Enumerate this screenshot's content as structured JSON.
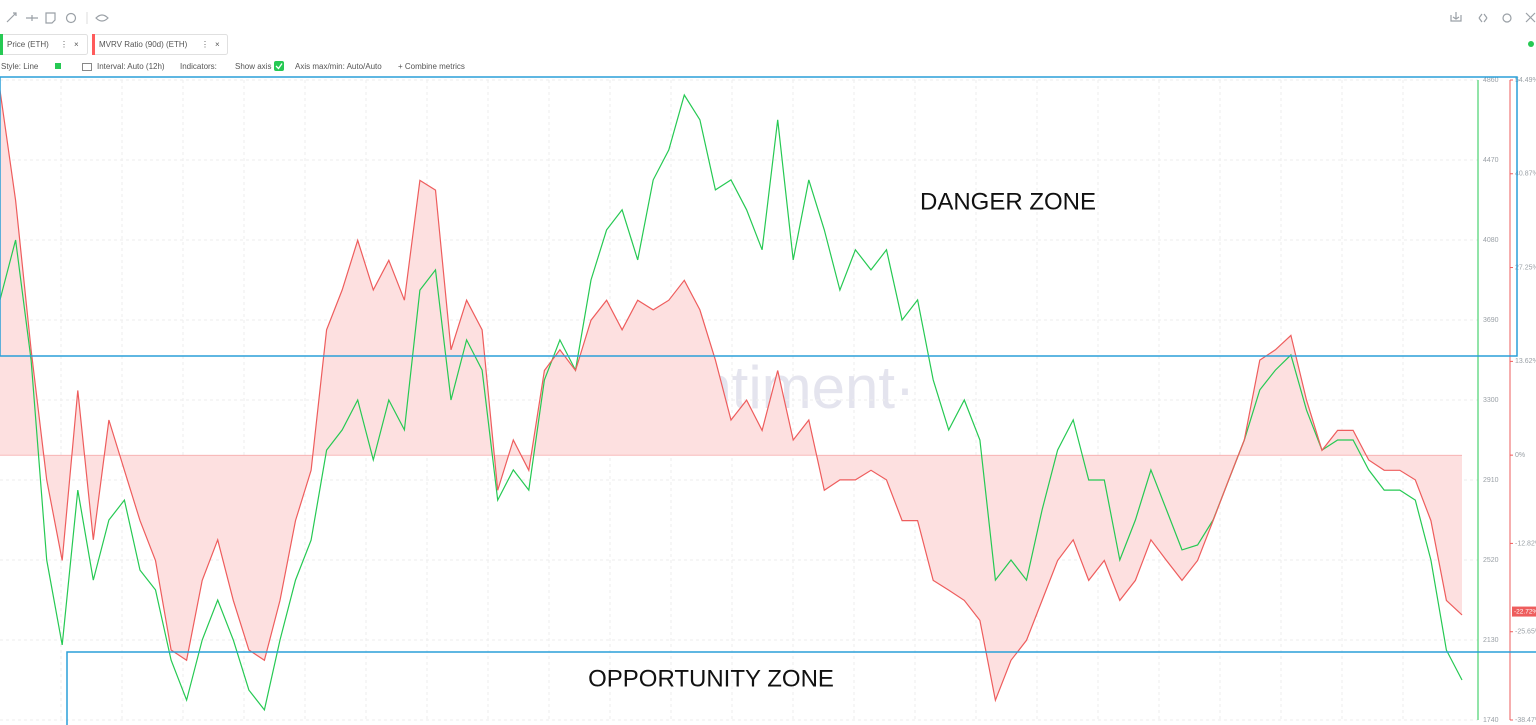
{
  "settings": {
    "style": "Style: Line",
    "interval": "Interval: Auto (12h)",
    "indicators": "Indicators:",
    "show_axis": "Show axis",
    "axis": "Axis max/min: Auto/Auto",
    "combine": "+ Combine metrics"
  },
  "chart_data": {
    "type": "line",
    "watermark": "·santiment·",
    "annotations": [
      "DANGER ZONE",
      "OPPORTUNITY ZONE"
    ],
    "grid": true,
    "ylim": [
      1740,
      4860
    ],
    "yticks": [
      1740,
      2130,
      2520,
      2910,
      3300,
      3690,
      4080,
      4470,
      4860
    ],
    "y2lim": [
      -38.47,
      54.49
    ],
    "y2ticks": [
      {
        "value": -38.47,
        "label": "-38.47%"
      },
      {
        "value": -25.65,
        "label": "-25.65%"
      },
      {
        "value": -12.82,
        "label": "-12.82%"
      },
      {
        "value": 0,
        "label": "0%"
      },
      {
        "value": 13.62,
        "label": "13.62%"
      },
      {
        "value": 27.25,
        "label": "27.25%"
      },
      {
        "value": 40.87,
        "label": "40.87%"
      },
      {
        "value": 54.49,
        "label": "54.49%"
      }
    ],
    "y2_last_label": {
      "value": -22.72,
      "label": "-22.72%"
    },
    "series": [
      {
        "name": "Price (ETH)",
        "color": "#26c953",
        "values": [
          3788,
          4080,
          3495,
          2520,
          2106,
          2861,
          2422,
          2715,
          2812,
          2471,
          2374,
          2032,
          1837,
          2130,
          2325,
          2130,
          1886,
          1789,
          2130,
          2422,
          2617,
          3056,
          3154,
          3300,
          3008,
          3300,
          3154,
          3836,
          3934,
          3300,
          3593,
          3446,
          2812,
          2959,
          2861,
          3398,
          3593,
          3446,
          3885,
          4129,
          4227,
          3983,
          4373,
          4519,
          4787,
          4666,
          4324,
          4373,
          4227,
          4032,
          4666,
          3983,
          4373,
          4129,
          3836,
          4032,
          3934,
          4032,
          3690,
          3788,
          3398,
          3154,
          3300,
          3105,
          2422,
          2520,
          2422,
          2764,
          3056,
          3203,
          2910,
          2910,
          2520,
          2715,
          2959,
          2764,
          2569,
          2593,
          2715,
          2910,
          3105,
          3349,
          3446,
          3520,
          3251,
          3056,
          3105,
          3105,
          2959,
          2861,
          2861,
          2812,
          2520,
          2081,
          1935
        ]
      },
      {
        "name": "MVRV Ratio (90d) (ETH)",
        "color": "#ee5d5d",
        "fill": "#fde0e0",
        "axis": "y2",
        "values": [
          53.0,
          37.0,
          15.3,
          -3.6,
          -15.3,
          9.4,
          -12.3,
          5.1,
          -2.2,
          -9.5,
          -15.3,
          -28.3,
          -29.8,
          -18.2,
          -12.3,
          -21.1,
          -28.3,
          -29.8,
          -21.1,
          -9.5,
          -2.2,
          18.2,
          24.0,
          31.2,
          24.0,
          28.3,
          22.5,
          39.9,
          38.5,
          15.3,
          22.5,
          18.2,
          -5.1,
          2.2,
          -2.2,
          12.3,
          15.3,
          12.3,
          19.6,
          22.5,
          18.2,
          22.5,
          21.1,
          22.5,
          25.4,
          21.1,
          13.8,
          5.1,
          8.0,
          3.6,
          12.3,
          2.2,
          5.1,
          -5.1,
          -3.6,
          -3.6,
          -2.2,
          -3.6,
          -9.5,
          -9.5,
          -18.2,
          -19.6,
          -21.1,
          -24.0,
          -35.6,
          -29.8,
          -26.9,
          -21.1,
          -15.3,
          -12.3,
          -18.2,
          -15.3,
          -21.1,
          -18.2,
          -12.3,
          -15.3,
          -18.2,
          -15.3,
          -9.5,
          -3.6,
          2.2,
          13.8,
          15.3,
          17.4,
          8.0,
          0.7,
          3.6,
          3.6,
          -0.7,
          -2.2,
          -2.2,
          -3.6,
          -9.5,
          -21.1,
          -23.2
        ]
      }
    ]
  }
}
